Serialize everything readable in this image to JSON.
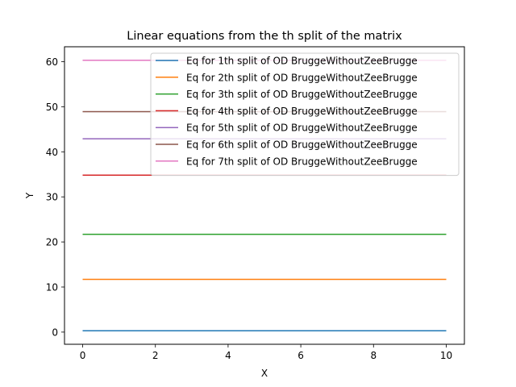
{
  "chart_data": {
    "type": "line",
    "title": "Linear equations from the th split of the matrix",
    "xlabel": "X",
    "ylabel": "Y",
    "xlim": [
      -0.5,
      10.5
    ],
    "ylim": [
      -2.7,
      63.3
    ],
    "x_ticks": [
      0,
      2,
      4,
      6,
      8,
      10
    ],
    "y_ticks": [
      0,
      10,
      20,
      30,
      40,
      50,
      60
    ],
    "grid": false,
    "legend_position": "upper-right",
    "x": [
      0,
      10
    ],
    "series": [
      {
        "name": "Eq for 1th split of OD BruggeWithoutZeeBrugge",
        "values": [
          0.3,
          0.3
        ],
        "color": "#1f77b4"
      },
      {
        "name": "Eq for 2th split of OD BruggeWithoutZeeBrugge",
        "values": [
          11.7,
          11.7
        ],
        "color": "#ff7f0e"
      },
      {
        "name": "Eq for 3th split of OD BruggeWithoutZeeBrugge",
        "values": [
          21.7,
          21.7
        ],
        "color": "#2ca02c"
      },
      {
        "name": "Eq for 4th split of OD BruggeWithoutZeeBrugge",
        "values": [
          34.8,
          34.8
        ],
        "color": "#d62728"
      },
      {
        "name": "Eq for 5th split of OD BruggeWithoutZeeBrugge",
        "values": [
          42.9,
          42.9
        ],
        "color": "#9467bd"
      },
      {
        "name": "Eq for 6th split of OD BruggeWithoutZeeBrugge",
        "values": [
          48.9,
          48.9
        ],
        "color": "#8c564b"
      },
      {
        "name": "Eq for 7th split of OD BruggeWithoutZeeBrugge",
        "values": [
          60.3,
          60.3
        ],
        "color": "#e377c2"
      }
    ]
  }
}
